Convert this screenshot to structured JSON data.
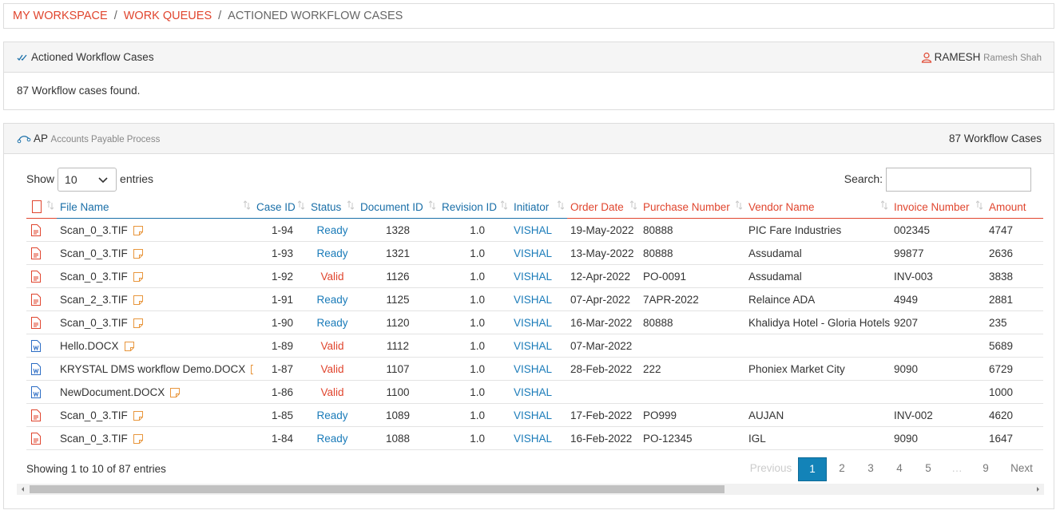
{
  "breadcrumb": {
    "items": [
      "MY WORKSPACE",
      "WORK QUEUES",
      "ACTIONED WORKFLOW CASES"
    ],
    "separator": "/"
  },
  "panel1": {
    "title": "Actioned Workflow Cases",
    "user": "RAMESH",
    "user_full": "Ramesh Shah",
    "message": "87 Workflow cases found."
  },
  "panel2": {
    "code": "AP",
    "name": "Accounts Payable Process",
    "count": "87 Workflow Cases"
  },
  "table": {
    "show": "Show",
    "length": "10",
    "entries": "entries",
    "search": "Search:",
    "columns": [
      {
        "label": "File Name",
        "color": "#1a6fa8"
      },
      {
        "label": "Case ID",
        "color": "#1a6fa8"
      },
      {
        "label": "Status",
        "color": "#1a6fa8"
      },
      {
        "label": "Document ID",
        "color": "#1a6fa8"
      },
      {
        "label": "Revision ID",
        "color": "#1a6fa8"
      },
      {
        "label": "Initiator",
        "color": "#1a6fa8"
      },
      {
        "label": "Order Date",
        "color": "#e0452e"
      },
      {
        "label": "Purchase Number",
        "color": "#e0452e"
      },
      {
        "label": "Vendor Name",
        "color": "#e0452e"
      },
      {
        "label": "Invoice Number",
        "color": "#e0452e"
      },
      {
        "label": "Amount",
        "color": "#e0452e"
      }
    ],
    "status_colors": {
      "Ready": "#1a7bb9",
      "Valid": "#e0452e"
    },
    "rows": [
      [
        "Scan_0_3.TIF",
        "1-94",
        "Ready",
        "1328",
        "1.0",
        "VISHAL",
        "19-May-2022",
        "80888",
        "PIC Fare Industries",
        "002345",
        "4747"
      ],
      [
        "Scan_0_3.TIF",
        "1-93",
        "Ready",
        "1321",
        "1.0",
        "VISHAL",
        "13-May-2022",
        "80888",
        "Assudamal",
        "99877",
        "2636"
      ],
      [
        "Scan_0_3.TIF",
        "1-92",
        "Valid",
        "1126",
        "1.0",
        "VISHAL",
        "12-Apr-2022",
        "PO-0091",
        "Assudamal",
        "INV-003",
        "3838"
      ],
      [
        "Scan_2_3.TIF",
        "1-91",
        "Ready",
        "1125",
        "1.0",
        "VISHAL",
        "07-Apr-2022",
        "7APR-2022",
        "Relaince ADA",
        "4949",
        "2881"
      ],
      [
        "Scan_0_3.TIF",
        "1-90",
        "Ready",
        "1120",
        "1.0",
        "VISHAL",
        "16-Mar-2022",
        "80888",
        "Khalidya Hotel - Gloria Hotels",
        "9207",
        "235"
      ],
      [
        "Hello.DOCX",
        "1-89",
        "Valid",
        "1112",
        "1.0",
        "VISHAL",
        "07-Mar-2022",
        null,
        null,
        null,
        "5689"
      ],
      [
        "KRYSTAL DMS workflow Demo.DOCX",
        "1-87",
        "Valid",
        "1107",
        "1.0",
        "VISHAL",
        "28-Feb-2022",
        "222",
        "Phoniex Market City",
        "9090",
        "6729"
      ],
      [
        "NewDocument.DOCX",
        "1-86",
        "Valid",
        "1100",
        "1.0",
        "VISHAL",
        null,
        null,
        null,
        null,
        "1000"
      ],
      [
        "Scan_0_3.TIF",
        "1-85",
        "Ready",
        "1089",
        "1.0",
        "VISHAL",
        "17-Feb-2022",
        "PO999",
        "AUJAN",
        "INV-002",
        "4620"
      ],
      [
        "Scan_0_3.TIF",
        "1-84",
        "Ready",
        "1088",
        "1.0",
        "VISHAL",
        "16-Feb-2022",
        "PO-12345",
        "IGL",
        "9090",
        "1647"
      ]
    ],
    "info": "Showing 1 to 10 of 87 entries",
    "pagination": [
      "Previous",
      "1",
      "2",
      "3",
      "4",
      "5",
      "…",
      "9",
      "Next"
    ],
    "active_page": 1
  }
}
